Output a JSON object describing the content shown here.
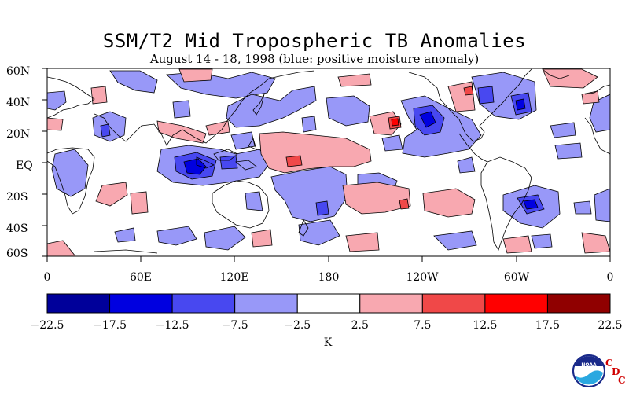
{
  "title": "SSM/T2 Mid Tropospheric TB Anomalies",
  "subtitle": "August 14 - 18, 1998 (blue: positive moisture anomaly)",
  "lat_labels": [
    "60N",
    "40N",
    "20N",
    "EQ",
    "20S",
    "40S",
    "60S"
  ],
  "lat_values": [
    60,
    40,
    20,
    0,
    -20,
    -40,
    -60
  ],
  "lon_labels": [
    "0",
    "60E",
    "120E",
    "180",
    "120W",
    "60W",
    "0"
  ],
  "lon_values": [
    0,
    60,
    120,
    180,
    240,
    300,
    360
  ],
  "colorbar": {
    "labels": [
      "-22.5",
      "-17.5",
      "-12.5",
      "-7.5",
      "-2.5",
      "2.5",
      "7.5",
      "12.5",
      "17.5",
      "22.5"
    ],
    "colors": [
      "#00009a",
      "#0000e0",
      "#4848f0",
      "#9898f8",
      "#ffffff",
      "#f8a8b0",
      "#f04848",
      "#ff0000",
      "#900000"
    ],
    "unit": "K"
  },
  "colors": {
    "neg_light": "#9898f8",
    "neg_mid": "#4848f0",
    "neg_strong": "#0000e0",
    "pos_light": "#f8a8b0",
    "pos_mid": "#f04848",
    "pos_strong": "#ff0000"
  },
  "logo": {
    "name": "noaa-logo",
    "text": "NOAA",
    "cdc": [
      "C",
      "D",
      "C"
    ]
  }
}
